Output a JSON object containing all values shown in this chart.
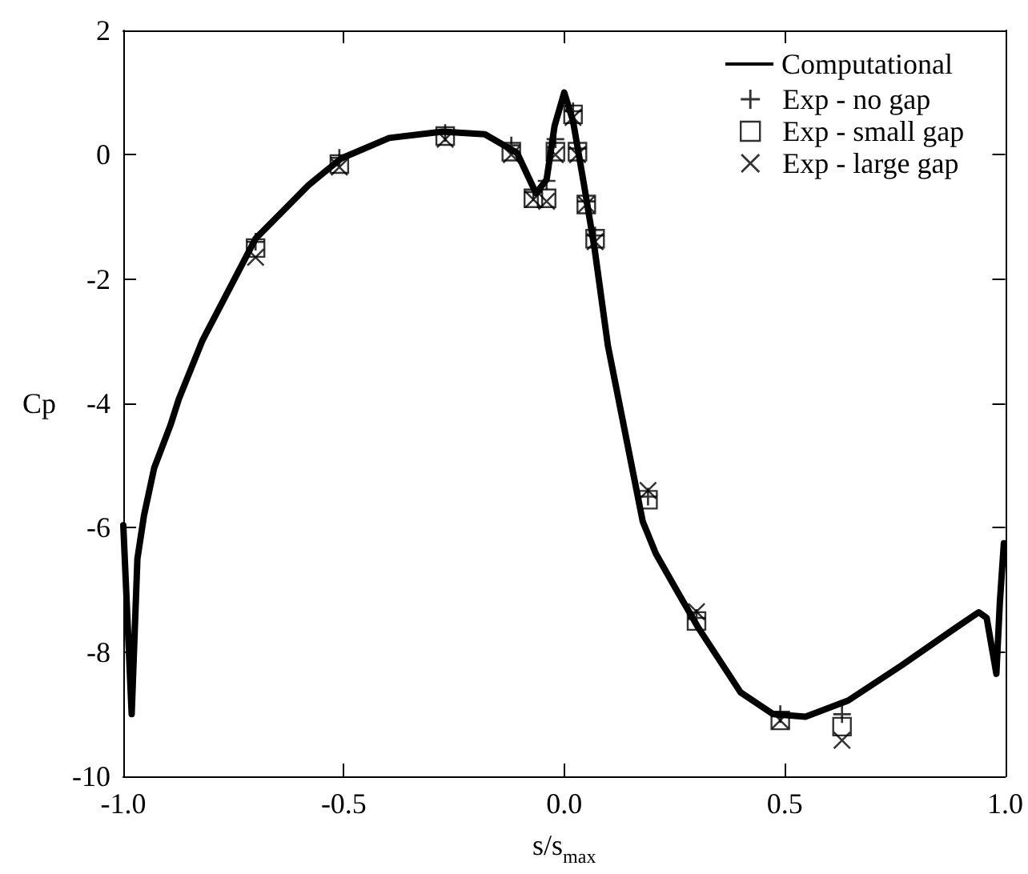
{
  "chart_data": {
    "type": "line",
    "xlabel": "s/s$_{max}$",
    "ylabel": "Cp",
    "xlim": [
      -1.0,
      1.0
    ],
    "xticks": [
      {
        "value": -1,
        "label": "-1.0"
      },
      {
        "value": -0.5,
        "label": "-0.5"
      },
      {
        "value": 0,
        "label": "0.0"
      },
      {
        "value": 0.5,
        "label": "0.5"
      },
      {
        "value": 1,
        "label": "1.0"
      }
    ],
    "ylim": [
      -10,
      2
    ],
    "yticks": [
      -10,
      -8,
      -6,
      -4,
      -2,
      0,
      2
    ],
    "grid": false,
    "legend": "top right",
    "series": [
      {
        "name": "Computational",
        "color": "#000000",
        "marker": "none",
        "line_style": "solid",
        "x": [
          -1.0,
          -0.981,
          -0.968,
          -0.953,
          -0.93,
          -0.893,
          -0.874,
          -0.82,
          -0.7,
          -0.58,
          -0.506,
          -0.397,
          -0.276,
          -0.18,
          -0.107,
          -0.064,
          -0.04,
          -0.022,
          0.0,
          0.02,
          0.045,
          0.069,
          0.099,
          0.123,
          0.142,
          0.178,
          0.208,
          0.256,
          0.305,
          0.4,
          0.474,
          0.547,
          0.644,
          0.764,
          0.886,
          0.94,
          0.958,
          0.98,
          0.988,
          0.997
        ],
        "values": [
          -5.96,
          -9.0,
          -6.5,
          -5.8,
          -5.04,
          -4.35,
          -3.93,
          -2.98,
          -1.35,
          -0.49,
          -0.06,
          0.27,
          0.37,
          0.33,
          0.03,
          -0.62,
          -0.4,
          0.46,
          1.0,
          0.54,
          -0.49,
          -1.52,
          -3.07,
          -3.93,
          -4.61,
          -5.9,
          -6.42,
          -7.02,
          -7.62,
          -8.65,
          -9.0,
          -9.04,
          -8.78,
          -8.22,
          -7.62,
          -7.36,
          -7.45,
          -8.35,
          -7.19,
          -6.25
        ]
      },
      {
        "name": "Exp - no gap",
        "type": "scatter",
        "color": "#000000",
        "marker": "plus",
        "x": [
          -0.7,
          -0.51,
          -0.27,
          -0.12,
          -0.07,
          -0.04,
          -0.02,
          0.02,
          0.03,
          0.05,
          0.07,
          0.19,
          0.3,
          0.49,
          0.63
        ],
        "values": [
          -1.4,
          -0.05,
          0.35,
          0.15,
          -0.6,
          -0.42,
          0.25,
          0.7,
          0.1,
          -0.75,
          -1.3,
          -5.5,
          -7.45,
          -9.0,
          -9.0
        ]
      },
      {
        "name": "Exp - small gap",
        "type": "scatter",
        "color": "#000000",
        "marker": "square",
        "x": [
          -0.7,
          -0.51,
          -0.27,
          -0.12,
          -0.07,
          -0.04,
          -0.02,
          0.02,
          0.03,
          0.05,
          0.07,
          0.19,
          0.3,
          0.49,
          0.63
        ],
        "values": [
          -1.5,
          -0.15,
          0.3,
          0.05,
          -0.7,
          -0.7,
          0.05,
          0.65,
          0.05,
          -0.8,
          -1.35,
          -5.55,
          -7.5,
          -9.1,
          -9.2
        ]
      },
      {
        "name": "Exp - large gap",
        "type": "scatter",
        "color": "#000000",
        "marker": "cross",
        "x": [
          -0.7,
          -0.51,
          -0.27,
          -0.12,
          -0.07,
          -0.04,
          -0.02,
          0.02,
          0.03,
          0.05,
          0.07,
          0.19,
          0.3,
          0.49,
          0.63
        ],
        "values": [
          -1.65,
          -0.2,
          0.25,
          0.0,
          -0.72,
          -0.75,
          0.0,
          0.6,
          0.0,
          -0.8,
          -1.4,
          -5.4,
          -7.35,
          -9.1,
          -9.42
        ]
      }
    ]
  }
}
